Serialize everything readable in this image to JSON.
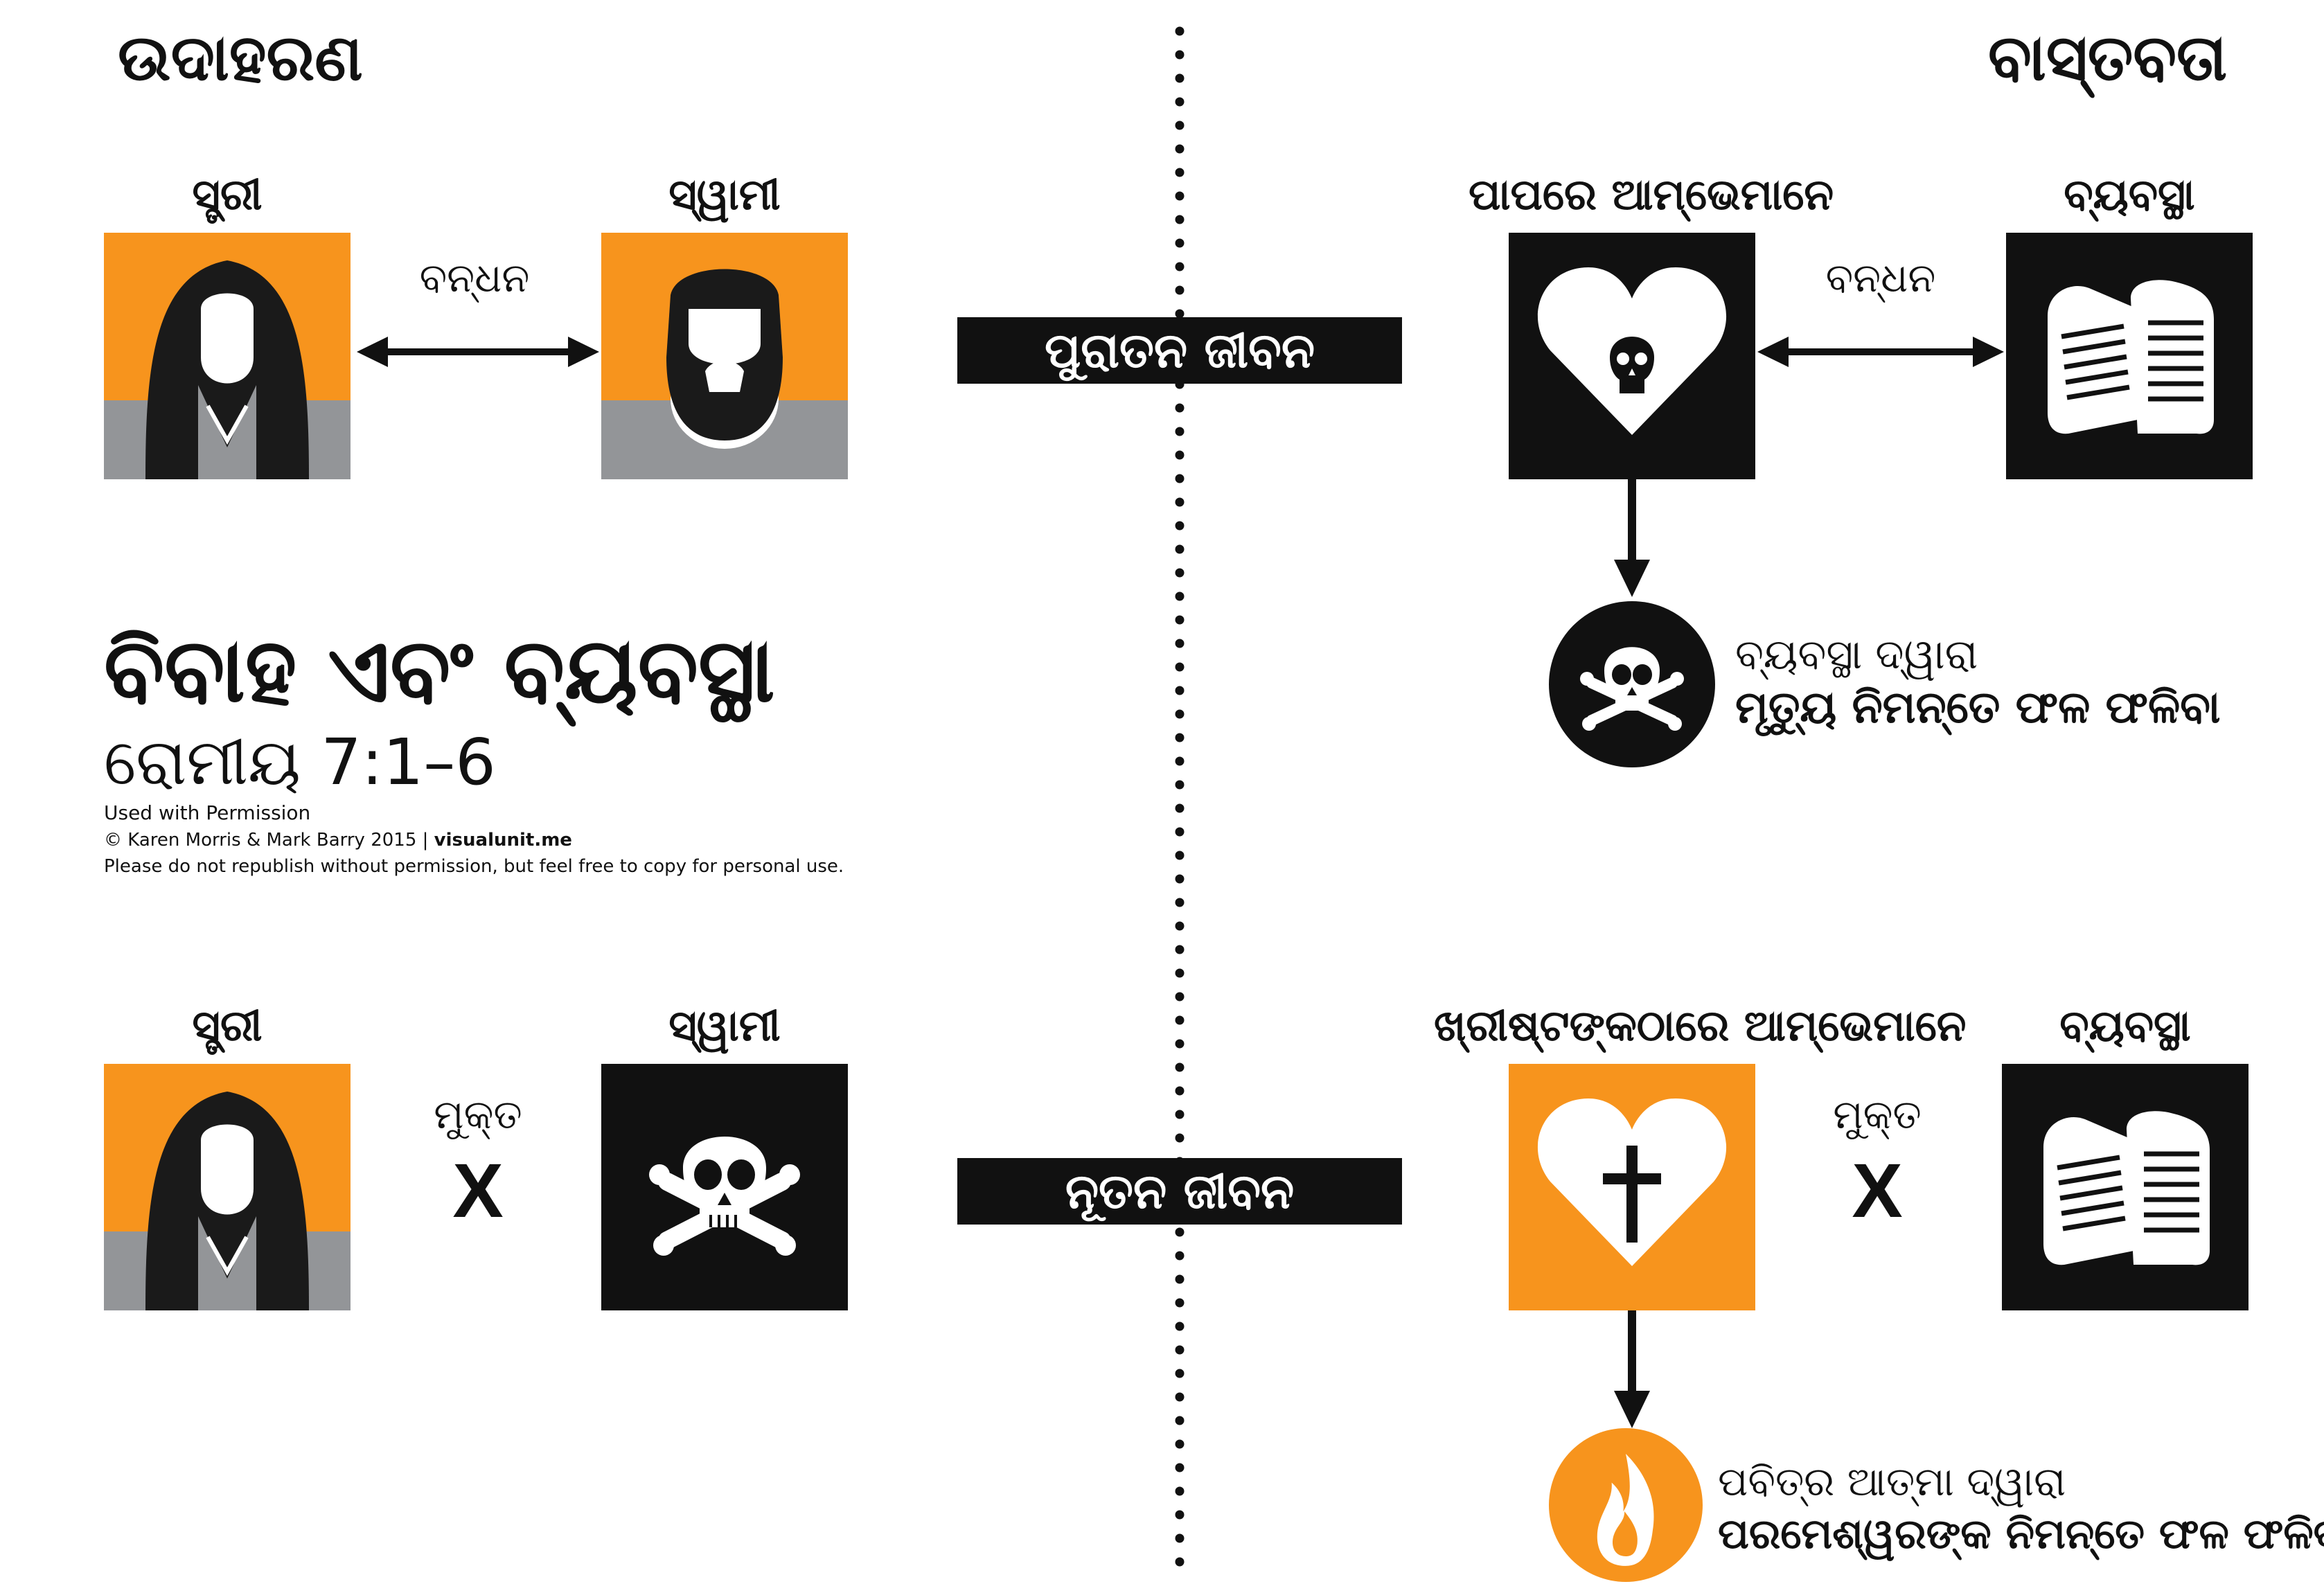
{
  "header": {
    "example_title": "ଉଦାହରଣ",
    "reality_title": "ବାସ୍ତବତା"
  },
  "center": {
    "old_life": "ପୁରାତନ ଜୀବନ",
    "new_life": "ନୂତନ ଜୀବନ"
  },
  "title_block": {
    "title": "ବିବାହ ଏବଂ ବ୍ୟବସ୍ଥା",
    "reference": "ରୋମୀୟ 7:1–6",
    "permission": "Used with Permission",
    "copyright_prefix": "© Karen Morris & Mark Barry 2015  |  ",
    "site": "visualunit.me",
    "notice": "Please do not republish without permission, but feel free to copy for personal use."
  },
  "top_left": {
    "wife_label": "ସ୍ତ୍ରୀ",
    "husband_label": "ସ୍ୱାମୀ",
    "bond_label": "ବନ୍ଧନ"
  },
  "bottom_left": {
    "wife_label": "ସ୍ତ୍ରୀ",
    "husband_label": "ସ୍ୱାମୀ",
    "free_label": "ମୁକ୍ତ",
    "x_mark": "X"
  },
  "top_right": {
    "we_in_sin_label": "ପାପରେ ଆମ୍ଭେମାନେ",
    "law_label": "ବ୍ୟବସ୍ଥା",
    "bond_label": "ବନ୍ଧନ",
    "result_line1": "ବ୍ୟବସ୍ଥା ଦ୍ୱାରା",
    "result_line2": "ମୃତ୍ୟୁ ନିମନ୍ତେ ଫଳ ଫଳିବା"
  },
  "bottom_right": {
    "we_in_christ_label": "ଖ୍ରୀଷ୍ଟଙ୍କଠାରେ ଆମ୍ଭେମାନେ",
    "law_label": "ବ୍ୟବସ୍ଥା",
    "free_label": "ମୁକ୍ତ",
    "x_mark": "X",
    "result_line1": "ପବିତ୍ର ଆତ୍ମା ଦ୍ୱାରା",
    "result_line2": "ପରମେଶ୍ୱରଙ୍କ ନିମନ୍ତେ ଫଳ ଫଳିବା"
  },
  "icons": [
    "woman-icon",
    "bearded-man-icon",
    "skull-crossbones-icon",
    "heart-skull-icon",
    "heart-cross-icon",
    "law-tablets-icon",
    "flame-icon",
    "double-arrow-icon",
    "down-arrow-icon"
  ],
  "colors": {
    "orange": "#f7941d",
    "gray": "#939598",
    "black": "#111111",
    "white": "#ffffff"
  }
}
